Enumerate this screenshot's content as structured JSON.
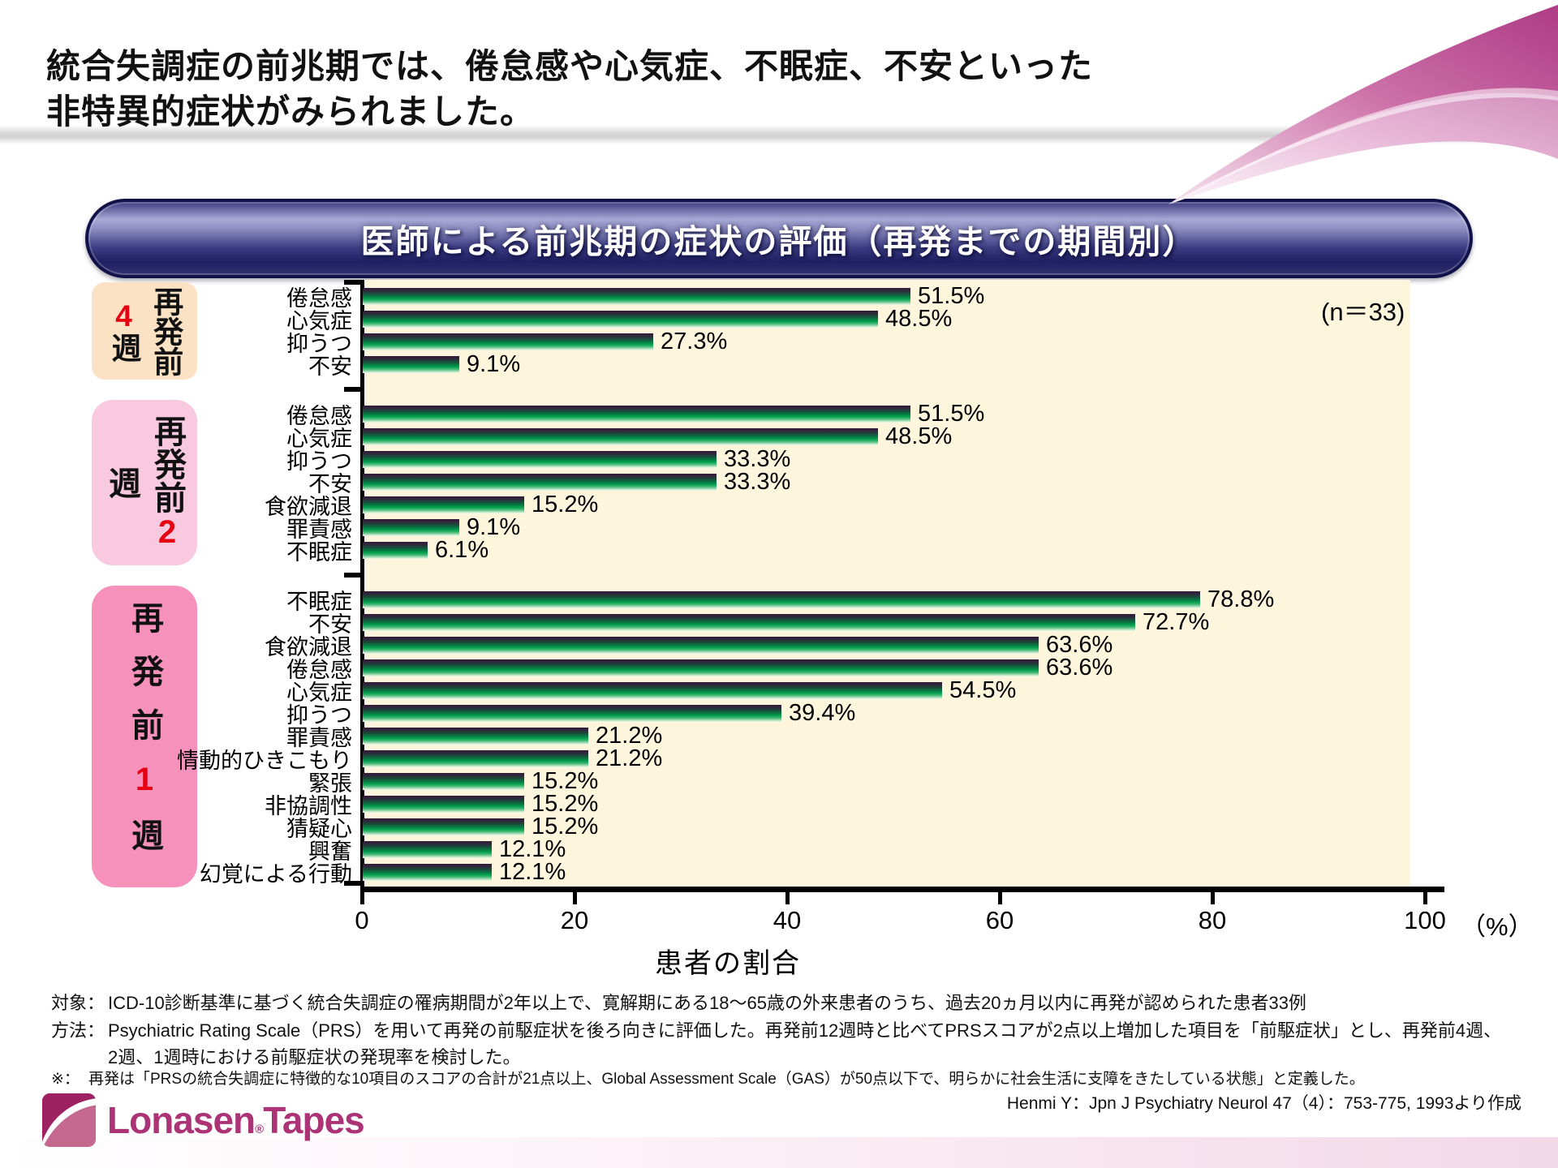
{
  "header": {
    "title_line1": "統合失調症の前兆期では、倦怠感や心気症、不眠症、不安といった",
    "title_line2": "非特異的症状がみられました。"
  },
  "banner": {
    "title": "医師による前兆期の症状の評価（再発までの期間別）"
  },
  "chart_data": {
    "type": "bar",
    "orientation": "horizontal",
    "title": "医師による前兆期の症状の評価（再発までの期間別）",
    "n_label": "(n＝33)",
    "xlabel": "患者の割合",
    "x_unit": "（%）",
    "xlim": [
      0,
      100
    ],
    "x_ticks": [
      0,
      20,
      40,
      60,
      80,
      100
    ],
    "plot_background": "#fdf5dc",
    "bar_gradient": [
      "#351b39",
      "#009e4e",
      "#f4fbef"
    ],
    "accent_red": "#e60012",
    "groups": [
      {
        "label": "再発前4週",
        "label_main": "再発前",
        "number": "4",
        "week_char": "週",
        "box_color": "#fbe2c4",
        "items": [
          {
            "category": "倦怠感",
            "value": 51.5,
            "display": "51.5%"
          },
          {
            "category": "心気症",
            "value": 48.5,
            "display": "48.5%"
          },
          {
            "category": "抑うつ",
            "value": 27.3,
            "display": "27.3%"
          },
          {
            "category": "不安",
            "value": 9.1,
            "display": "9.1%"
          }
        ]
      },
      {
        "label": "再発前2週",
        "label_main": "再発前",
        "number": "2",
        "week_char": "週",
        "box_color": "#f9cadf",
        "items": [
          {
            "category": "倦怠感",
            "value": 51.5,
            "display": "51.5%"
          },
          {
            "category": "心気症",
            "value": 48.5,
            "display": "48.5%"
          },
          {
            "category": "抑うつ",
            "value": 33.3,
            "display": "33.3%"
          },
          {
            "category": "不安",
            "value": 33.3,
            "display": "33.3%"
          },
          {
            "category": "食欲減退",
            "value": 15.2,
            "display": "15.2%"
          },
          {
            "category": "罪責感",
            "value": 9.1,
            "display": "9.1%"
          },
          {
            "category": "不眠症",
            "value": 6.1,
            "display": "6.1%"
          }
        ]
      },
      {
        "label": "再発前1週",
        "label_main": "再発前",
        "number": "1",
        "week_char": "週",
        "box_color": "#f591bb",
        "items": [
          {
            "category": "不眠症",
            "value": 78.8,
            "display": "78.8%"
          },
          {
            "category": "不安",
            "value": 72.7,
            "display": "72.7%"
          },
          {
            "category": "食欲減退",
            "value": 63.6,
            "display": "63.6%"
          },
          {
            "category": "倦怠感",
            "value": 63.6,
            "display": "63.6%"
          },
          {
            "category": "心気症",
            "value": 54.5,
            "display": "54.5%"
          },
          {
            "category": "抑うつ",
            "value": 39.4,
            "display": "39.4%"
          },
          {
            "category": "罪責感",
            "value": 21.2,
            "display": "21.2%"
          },
          {
            "category": "情動的ひきこもり",
            "value": 21.2,
            "display": "21.2%"
          },
          {
            "category": "緊張",
            "value": 15.2,
            "display": "15.2%"
          },
          {
            "category": "非協調性",
            "value": 15.2,
            "display": "15.2%"
          },
          {
            "category": "猜疑心",
            "value": 15.2,
            "display": "15.2%"
          },
          {
            "category": "興奮",
            "value": 12.1,
            "display": "12.1%"
          },
          {
            "category": "幻覚による行動",
            "value": 12.1,
            "display": "12.1%"
          }
        ]
      }
    ]
  },
  "footnotes": {
    "taisho_label": "対象：",
    "taisho_text": "ICD-10診断基準に基づく統合失調症の罹病期間が2年以上で、寛解期にある18～65歳の外来患者のうち、過去20ヵ月以内に再発が認められた患者33例",
    "hoho_label": "方法：",
    "hoho_line1": "Psychiatric Rating Scale（PRS）を用いて再発の前駆症状を後ろ向きに評価した。再発前12週時と比べてPRSスコアが2点以上増加した項目を「前駆症状」とし、再発前4週、",
    "hoho_line2": "2週、1週時における前駆症状の発現率を検討した。",
    "note_label": "※：",
    "note_text": "再発は「PRSの統合失調症に特徴的な10項目のスコアの合計が21点以上、Global Assessment Scale（GAS）が50点以下で、明らかに社会生活に支障をきたしている状態」と定義した。"
  },
  "citation": "Henmi Y：Jpn J Psychiatry Neurol 47（4）：753-775, 1993より作成",
  "logo": {
    "name_main": "Lonasen",
    "reg_mark": "®",
    "name_sub": "Tapes",
    "brand_color": "#ab3376"
  }
}
